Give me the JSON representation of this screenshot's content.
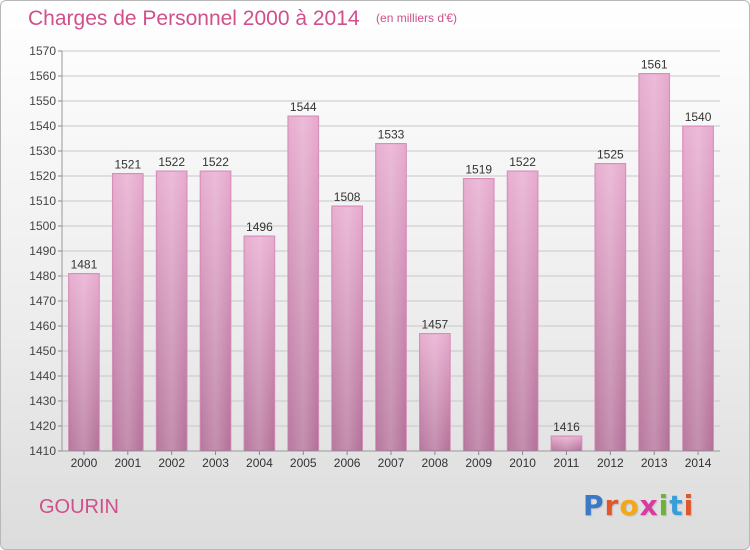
{
  "header": {
    "title": "Charges de Personnel 2000 à 2014",
    "unit_note": "(en milliers d'€)"
  },
  "footer": {
    "city": "GOURIN",
    "logo_text": "Proxiti"
  },
  "colors": {
    "accent": "#d0508c",
    "bar_top": "#e6a6cc",
    "bar_bottom": "#b06a94",
    "grid": "#c8c8c8"
  },
  "chart_data": {
    "type": "bar",
    "title": "Charges de Personnel 2000 à 2014",
    "subtitle": "(en milliers d'€)",
    "categories": [
      "2000",
      "2001",
      "2002",
      "2003",
      "2004",
      "2005",
      "2006",
      "2007",
      "2008",
      "2009",
      "2010",
      "2011",
      "2012",
      "2013",
      "2014"
    ],
    "values": [
      1481,
      1521,
      1522,
      1522,
      1496,
      1544,
      1508,
      1533,
      1457,
      1519,
      1522,
      1416,
      1525,
      1561,
      1540
    ],
    "ylim": [
      1410,
      1570
    ],
    "yticks": [
      1410,
      1420,
      1430,
      1440,
      1450,
      1460,
      1470,
      1480,
      1490,
      1500,
      1510,
      1520,
      1530,
      1540,
      1550,
      1560,
      1570
    ],
    "grid": true,
    "xlabel": "",
    "ylabel": ""
  }
}
